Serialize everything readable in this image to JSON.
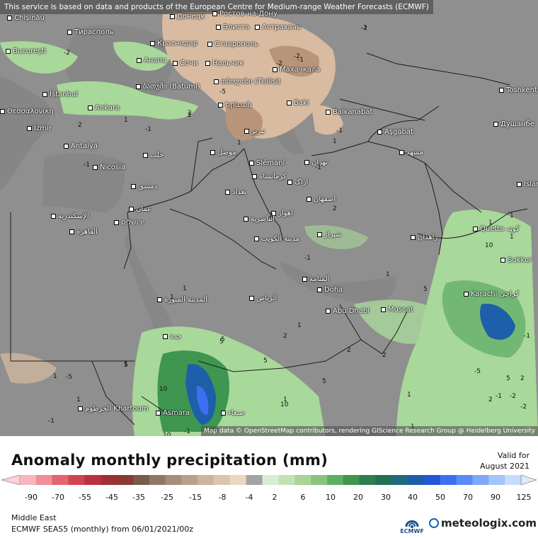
{
  "disclaimer": "This service is based on data and products of the European Centre for Medium-range Weather Forecasts (ECMWF)",
  "attribution": "Map data © OpenStreetMap contributors, rendering GIScience Research Group @ Heidelberg University",
  "title": "Anomaly monthly precipitation (mm)",
  "valid_label": "Valid for",
  "valid_date": "August 2021",
  "region": "Middle East",
  "run_info": "ECMWF SEAS5 (monthly) from 06/01/2021/00z",
  "logos": {
    "ecmwf": "ECMWF",
    "meteologix": "meteologix.com"
  },
  "legend": {
    "ticks": [
      "-90",
      "-70",
      "-55",
      "-45",
      "-35",
      "-25",
      "-15",
      "-8",
      "-4",
      "2",
      "6",
      "10",
      "20",
      "30",
      "40",
      "50",
      "70",
      "90",
      "125"
    ],
    "colors": [
      "#f5b6bd",
      "#ef8f98",
      "#e4646f",
      "#d2434f",
      "#b8333f",
      "#9e2f36",
      "#8a3a2f",
      "#7a5a4a",
      "#8f7766",
      "#a58d7d",
      "#b9a08c",
      "#cdb49c",
      "#dcc5ac",
      "#e9d8bf",
      "#a3a3a3",
      "#d9ecd3",
      "#c2e2b6",
      "#a7d596",
      "#88c57b",
      "#5fae60",
      "#3e9650",
      "#2d7f4d",
      "#22704f",
      "#1d6b7c",
      "#1d5fa8",
      "#2456d6",
      "#3d6ff0",
      "#5b8cf5",
      "#7fa8f7",
      "#a4c5fa",
      "#c7dcfc"
    ],
    "arrow_left": "#f9d1d6",
    "arrow_right": "#dce9fc"
  },
  "colors": {
    "land": "#8f8f8f",
    "wet": "#a8d89a",
    "wet_mid": "#72b874",
    "wet_strong": "#3e9650",
    "very_wet": "#1d5fa8",
    "extreme": "#3d6ff0",
    "dry": "#d8bba0",
    "dry_mid": "#b8957a",
    "border": "#222222"
  },
  "cities": [
    {
      "id": "chisinau",
      "name": "Chișinău"
    },
    {
      "id": "donetsk",
      "name": "Донецк"
    },
    {
      "id": "rostov",
      "name": "Ростов-на-Дону"
    },
    {
      "id": "tiraspol",
      "name": "Тирасполь"
    },
    {
      "id": "elista",
      "name": "Элиста"
    },
    {
      "id": "astrakhan",
      "name": "Астрахань"
    },
    {
      "id": "bucuresti",
      "name": "București"
    },
    {
      "id": "krasnodar",
      "name": "Краснодар"
    },
    {
      "id": "stavropol",
      "name": "Ставрополь"
    },
    {
      "id": "anapa",
      "name": "Анапа"
    },
    {
      "id": "sochi",
      "name": "Сочи"
    },
    {
      "id": "nalchik",
      "name": "Нальчик"
    },
    {
      "id": "makhachkala",
      "name": "Махачкала"
    },
    {
      "id": "tbilisi",
      "name": "თბილისი (Tbilisi)"
    },
    {
      "id": "batumi",
      "name": "ბათუმი (Batumi)"
    },
    {
      "id": "istanbul",
      "name": "İstanbul"
    },
    {
      "id": "thessaloniki",
      "name": "Θεσσαλονίκη"
    },
    {
      "id": "ankara",
      "name": "Ankara"
    },
    {
      "id": "yerevan",
      "name": "Երևան"
    },
    {
      "id": "baku",
      "name": "Baki"
    },
    {
      "id": "balkanabat",
      "name": "Balkanabat"
    },
    {
      "id": "toshkent",
      "name": "Toshkent"
    },
    {
      "id": "izmir",
      "name": "İzmir"
    },
    {
      "id": "tabriz",
      "name": "تبریز"
    },
    {
      "id": "ashgabat",
      "name": "Aşgabat"
    },
    {
      "id": "dushanbe",
      "name": "Душанбе"
    },
    {
      "id": "antalya",
      "name": "Antalya"
    },
    {
      "id": "halab",
      "name": "حلب"
    },
    {
      "id": "mosul",
      "name": "موصل"
    },
    {
      "id": "mashhad",
      "name": "مشهد"
    },
    {
      "id": "nicosia",
      "name": "Nicosia"
    },
    {
      "id": "slemani",
      "name": "Slêmanî"
    },
    {
      "id": "tehran",
      "name": "تهران"
    },
    {
      "id": "kermanshah",
      "name": "کرمانشاه"
    },
    {
      "id": "dimashq",
      "name": "دمشق"
    },
    {
      "id": "baghdad",
      "name": "بغداد"
    },
    {
      "id": "arak",
      "name": "اراک"
    },
    {
      "id": "islamabad",
      "name": "Islam"
    },
    {
      "id": "esfahan",
      "name": "اصفهان"
    },
    {
      "id": "amman",
      "name": "عمان"
    },
    {
      "id": "iskandariya",
      "name": "الإسكندرية"
    },
    {
      "id": "yerushalayim",
      "name": "ירושלים"
    },
    {
      "id": "ahvaz",
      "name": "اهواز"
    },
    {
      "id": "nasiriya",
      "name": "الناصرية"
    },
    {
      "id": "qahira",
      "name": "القاهرة"
    },
    {
      "id": "quetta",
      "name": "Quetta کوټه"
    },
    {
      "id": "shiraz",
      "name": "شیراز"
    },
    {
      "id": "kuwait",
      "name": "مدينة الكويت"
    },
    {
      "id": "zahedan",
      "name": "زاهدان"
    },
    {
      "id": "sukkur",
      "name": "Sukkur"
    },
    {
      "id": "manama",
      "name": "المنامة"
    },
    {
      "id": "doha",
      "name": "Doha"
    },
    {
      "id": "madina",
      "name": "المدينة المنورة"
    },
    {
      "id": "karachi",
      "name": "Karachi کراچی"
    },
    {
      "id": "riyadh",
      "name": "الرياض"
    },
    {
      "id": "muscat",
      "name": "Muscat"
    },
    {
      "id": "abudhabi",
      "name": "Abu Dhabi"
    },
    {
      "id": "jeddah",
      "name": "جدة"
    },
    {
      "id": "khartoum",
      "name": "الخرطوم Khartoum"
    },
    {
      "id": "asmara",
      "name": "Asmara"
    },
    {
      "id": "sanaa",
      "name": "صنعاء"
    }
  ],
  "contour_labels": [
    "-1",
    "-1",
    "-2",
    "-2",
    "-5",
    "-1",
    "2",
    "1",
    "1",
    "-1",
    "2",
    "1",
    "2",
    "-1",
    "2",
    "1",
    "1",
    "1",
    "-1",
    "1",
    "1",
    "1",
    "1",
    "5",
    "5",
    "10",
    "2",
    "5",
    "2",
    "1",
    "5",
    "-1",
    "2",
    "5",
    "-2",
    "-2",
    "-1",
    "1",
    "1",
    "-1",
    "10",
    "-2",
    "-5",
    "10",
    "20",
    "10",
    "1",
    "2",
    "5",
    "-5",
    "5",
    "-1",
    "1",
    "2",
    "-2",
    "-1",
    "2",
    "1"
  ]
}
